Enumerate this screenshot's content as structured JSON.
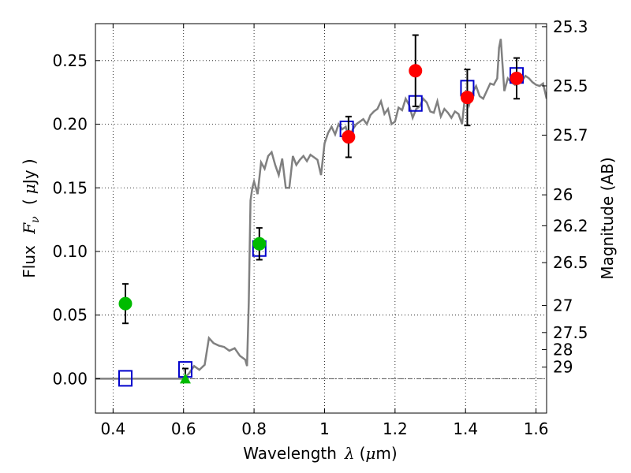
{
  "chart_data": {
    "type": "scatter",
    "xlabel_main": "Wavelength",
    "xlabel_symbol": "λ",
    "xlabel_unit_open": "(",
    "xlabel_unit_mu": "μ",
    "xlabel_unit_rest": "m)",
    "ylabel_main": "Flux",
    "ylabel_symbol": "F",
    "ylabel_subscript": "ν",
    "ylabel_unit_open": "(",
    "ylabel_unit_mu": "μ",
    "ylabel_unit_rest": "Jy )",
    "y2label": "Magnitude (AB)",
    "xlim": [
      0.35,
      1.63
    ],
    "ylim": [
      -0.027,
      0.279
    ],
    "grid": true,
    "x_ticks": [
      0.4,
      0.6,
      0.8,
      1.0,
      1.2,
      1.4,
      1.6
    ],
    "x_tick_labels": [
      "0.4",
      "0.6",
      "0.8",
      "1",
      "1.2",
      "1.4",
      "1.6"
    ],
    "y_ticks": [
      0.0,
      0.05,
      0.1,
      0.15,
      0.2,
      0.25
    ],
    "y_tick_labels": [
      "0.00",
      "0.05",
      "0.10",
      "0.15",
      "0.20",
      "0.25"
    ],
    "mag_ticks": [
      {
        "label": "25.3",
        "flux": 0.2766
      },
      {
        "label": "25.5",
        "flux": 0.2301
      },
      {
        "label": "25.7",
        "flux": 0.1914
      },
      {
        "label": "26",
        "flux": 0.1445
      },
      {
        "label": "26.2",
        "flux": 0.1202
      },
      {
        "label": "26.5",
        "flux": 0.0912
      },
      {
        "label": "27",
        "flux": 0.0575
      },
      {
        "label": "27.5",
        "flux": 0.0363
      },
      {
        "label": "28",
        "flux": 0.0229
      },
      {
        "label": "29",
        "flux": 0.0091
      }
    ],
    "series": [
      {
        "name": "",
        "type": "line",
        "color": "#808080",
        "x": [
          0.35,
          0.6,
          0.615,
          0.63,
          0.645,
          0.66,
          0.672,
          0.685,
          0.7,
          0.715,
          0.73,
          0.745,
          0.76,
          0.775,
          0.78,
          0.785,
          0.79,
          0.795,
          0.8,
          0.81,
          0.82,
          0.83,
          0.84,
          0.85,
          0.86,
          0.87,
          0.88,
          0.89,
          0.9,
          0.91,
          0.92,
          0.93,
          0.94,
          0.95,
          0.96,
          0.97,
          0.98,
          0.99,
          1.0,
          1.01,
          1.02,
          1.03,
          1.04,
          1.05,
          1.06,
          1.07,
          1.08,
          1.09,
          1.1,
          1.11,
          1.12,
          1.13,
          1.14,
          1.15,
          1.16,
          1.17,
          1.18,
          1.19,
          1.2,
          1.21,
          1.22,
          1.23,
          1.24,
          1.25,
          1.26,
          1.27,
          1.28,
          1.29,
          1.3,
          1.31,
          1.32,
          1.33,
          1.34,
          1.35,
          1.36,
          1.37,
          1.38,
          1.39,
          1.4,
          1.41,
          1.42,
          1.43,
          1.44,
          1.45,
          1.46,
          1.47,
          1.48,
          1.49,
          1.495,
          1.5,
          1.51,
          1.52,
          1.53,
          1.54,
          1.55,
          1.56,
          1.57,
          1.58,
          1.59,
          1.6,
          1.61,
          1.62,
          1.63
        ],
        "y": [
          0.0,
          0.0,
          0.004,
          0.01,
          0.007,
          0.011,
          0.032,
          0.028,
          0.026,
          0.025,
          0.022,
          0.024,
          0.018,
          0.015,
          0.01,
          0.06,
          0.14,
          0.15,
          0.155,
          0.145,
          0.17,
          0.165,
          0.175,
          0.178,
          0.168,
          0.16,
          0.173,
          0.15,
          0.15,
          0.175,
          0.168,
          0.172,
          0.175,
          0.171,
          0.176,
          0.174,
          0.172,
          0.16,
          0.185,
          0.193,
          0.198,
          0.192,
          0.2,
          0.196,
          0.198,
          0.187,
          0.196,
          0.2,
          0.202,
          0.204,
          0.2,
          0.207,
          0.21,
          0.212,
          0.218,
          0.208,
          0.212,
          0.2,
          0.202,
          0.213,
          0.211,
          0.22,
          0.215,
          0.205,
          0.212,
          0.214,
          0.22,
          0.217,
          0.21,
          0.209,
          0.218,
          0.206,
          0.212,
          0.209,
          0.205,
          0.21,
          0.208,
          0.2,
          0.226,
          0.215,
          0.225,
          0.23,
          0.222,
          0.22,
          0.226,
          0.232,
          0.231,
          0.236,
          0.26,
          0.267,
          0.226,
          0.236,
          0.233,
          0.231,
          0.236,
          0.234,
          0.238,
          0.236,
          0.233,
          0.231,
          0.23,
          0.232,
          0.22
        ]
      },
      {
        "name": "",
        "type": "open-square",
        "color": "#0000cc",
        "x": [
          0.435,
          0.605,
          0.815,
          1.063,
          1.258,
          1.405,
          1.545
        ],
        "y": [
          0.0,
          0.007,
          0.102,
          0.196,
          0.216,
          0.228,
          0.238
        ]
      },
      {
        "name": "",
        "type": "filled-circle",
        "color": "#00bb00",
        "x": [
          0.435,
          0.815
        ],
        "y": [
          0.059,
          0.106
        ],
        "yerr": [
          0.0155,
          0.0125
        ]
      },
      {
        "name": "",
        "type": "filled-circle",
        "color": "#ff0000",
        "x": [
          1.068,
          1.258,
          1.405,
          1.545
        ],
        "y": [
          0.19,
          0.242,
          0.221,
          0.236
        ],
        "yerr": [
          0.016,
          0.028,
          0.022,
          0.016
        ]
      },
      {
        "name": "",
        "type": "triangle",
        "color": "#00bb00",
        "x": [
          0.605
        ],
        "y": [
          0.0
        ],
        "yerr_up": [
          0.008
        ]
      }
    ]
  }
}
